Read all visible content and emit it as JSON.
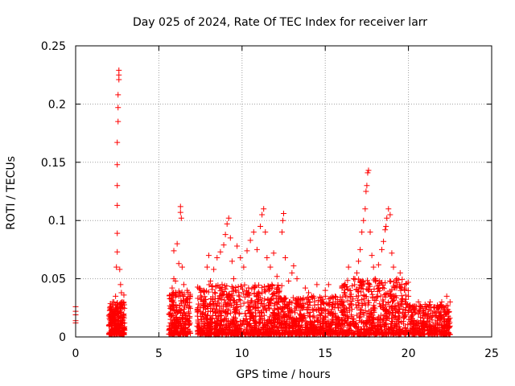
{
  "chart_data": {
    "type": "scatter",
    "title": "Day 025 of 2024, Rate Of TEC Index for receiver larr",
    "xlabel": "GPS time / hours",
    "ylabel": "ROTI / TECUs",
    "xlim": [
      0,
      25
    ],
    "ylim": [
      0,
      0.25
    ],
    "xticks": [
      0,
      5,
      10,
      15,
      20,
      25
    ],
    "xtick_labels": [
      "0",
      "5",
      "10",
      "15",
      "20",
      "25"
    ],
    "yticks": [
      0,
      0.05,
      0.1,
      0.15,
      0.2,
      0.25
    ],
    "ytick_labels": [
      "0",
      "0.05",
      "0.1",
      "0.15",
      "0.2",
      "0.25"
    ],
    "grid": true,
    "marker": "+",
    "color": "#ff0000",
    "series": [
      {
        "name": "ROTI",
        "points": [
          [
            0.0,
            0.012
          ],
          [
            0.0,
            0.014
          ],
          [
            0.0,
            0.019
          ],
          [
            0.0,
            0.022
          ],
          [
            0.0,
            0.026
          ],
          [
            2.0,
            0.01
          ],
          [
            2.0,
            0.018
          ],
          [
            2.1,
            0.025
          ],
          [
            2.1,
            0.013
          ],
          [
            2.2,
            0.022
          ],
          [
            2.2,
            0.009
          ],
          [
            2.3,
            0.03
          ],
          [
            2.3,
            0.016
          ],
          [
            2.4,
            0.035
          ],
          [
            2.4,
            0.012
          ],
          [
            2.45,
            0.06
          ],
          [
            2.5,
            0.073
          ],
          [
            2.5,
            0.089
          ],
          [
            2.5,
            0.113
          ],
          [
            2.5,
            0.13
          ],
          [
            2.5,
            0.148
          ],
          [
            2.5,
            0.167
          ],
          [
            2.55,
            0.185
          ],
          [
            2.55,
            0.197
          ],
          [
            2.55,
            0.208
          ],
          [
            2.6,
            0.221
          ],
          [
            2.6,
            0.225
          ],
          [
            2.6,
            0.229
          ],
          [
            2.65,
            0.058
          ],
          [
            2.7,
            0.045
          ],
          [
            2.7,
            0.02
          ],
          [
            2.75,
            0.038
          ],
          [
            2.8,
            0.03
          ],
          [
            2.8,
            0.012
          ],
          [
            2.9,
            0.036
          ],
          [
            2.9,
            0.018
          ],
          [
            2.9,
            0.008
          ],
          [
            5.7,
            0.012
          ],
          [
            5.8,
            0.03
          ],
          [
            5.8,
            0.042
          ],
          [
            5.9,
            0.05
          ],
          [
            5.9,
            0.074
          ],
          [
            6.0,
            0.02
          ],
          [
            6.0,
            0.048
          ],
          [
            6.1,
            0.08
          ],
          [
            6.2,
            0.063
          ],
          [
            6.2,
            0.035
          ],
          [
            6.3,
            0.107
          ],
          [
            6.3,
            0.112
          ],
          [
            6.35,
            0.102
          ],
          [
            6.4,
            0.06
          ],
          [
            6.4,
            0.015
          ],
          [
            6.5,
            0.045
          ],
          [
            6.6,
            0.03
          ],
          [
            6.7,
            0.04
          ],
          [
            6.8,
            0.025
          ],
          [
            6.8,
            0.01
          ],
          [
            7.5,
            0.022
          ],
          [
            7.7,
            0.04
          ],
          [
            7.9,
            0.06
          ],
          [
            8.0,
            0.07
          ],
          [
            8.1,
            0.048
          ],
          [
            8.3,
            0.058
          ],
          [
            8.5,
            0.068
          ],
          [
            8.7,
            0.073
          ],
          [
            8.8,
            0.045
          ],
          [
            8.9,
            0.079
          ],
          [
            9.0,
            0.088
          ],
          [
            9.1,
            0.097
          ],
          [
            9.2,
            0.102
          ],
          [
            9.3,
            0.085
          ],
          [
            9.4,
            0.065
          ],
          [
            9.5,
            0.05
          ],
          [
            9.7,
            0.078
          ],
          [
            9.9,
            0.068
          ],
          [
            10.1,
            0.06
          ],
          [
            10.3,
            0.074
          ],
          [
            10.5,
            0.083
          ],
          [
            10.7,
            0.09
          ],
          [
            10.9,
            0.075
          ],
          [
            11.1,
            0.095
          ],
          [
            11.2,
            0.105
          ],
          [
            11.3,
            0.11
          ],
          [
            11.4,
            0.09
          ],
          [
            11.5,
            0.068
          ],
          [
            11.7,
            0.06
          ],
          [
            11.9,
            0.072
          ],
          [
            12.1,
            0.052
          ],
          [
            12.2,
            0.042
          ],
          [
            12.4,
            0.09
          ],
          [
            12.45,
            0.1
          ],
          [
            12.5,
            0.106
          ],
          [
            12.6,
            0.068
          ],
          [
            12.8,
            0.048
          ],
          [
            13.0,
            0.055
          ],
          [
            13.1,
            0.061
          ],
          [
            13.3,
            0.05
          ],
          [
            13.5,
            0.032
          ],
          [
            13.8,
            0.042
          ],
          [
            14.0,
            0.038
          ],
          [
            14.3,
            0.035
          ],
          [
            14.5,
            0.045
          ],
          [
            14.8,
            0.03
          ],
          [
            15.0,
            0.04
          ],
          [
            15.2,
            0.045
          ],
          [
            15.4,
            0.028
          ],
          [
            15.6,
            0.035
          ],
          [
            15.8,
            0.025
          ],
          [
            16.0,
            0.03
          ],
          [
            16.2,
            0.045
          ],
          [
            16.4,
            0.06
          ],
          [
            16.5,
            0.04
          ],
          [
            16.7,
            0.05
          ],
          [
            16.9,
            0.055
          ],
          [
            17.0,
            0.065
          ],
          [
            17.1,
            0.075
          ],
          [
            17.2,
            0.09
          ],
          [
            17.3,
            0.1
          ],
          [
            17.4,
            0.11
          ],
          [
            17.45,
            0.125
          ],
          [
            17.5,
            0.13
          ],
          [
            17.55,
            0.141
          ],
          [
            17.6,
            0.143
          ],
          [
            17.7,
            0.09
          ],
          [
            17.8,
            0.07
          ],
          [
            17.9,
            0.06
          ],
          [
            18.0,
            0.05
          ],
          [
            18.2,
            0.062
          ],
          [
            18.4,
            0.075
          ],
          [
            18.5,
            0.082
          ],
          [
            18.6,
            0.092
          ],
          [
            18.65,
            0.095
          ],
          [
            18.7,
            0.102
          ],
          [
            18.8,
            0.11
          ],
          [
            18.9,
            0.105
          ],
          [
            19.0,
            0.072
          ],
          [
            19.1,
            0.06
          ],
          [
            19.3,
            0.05
          ],
          [
            19.5,
            0.055
          ],
          [
            19.6,
            0.045
          ],
          [
            19.8,
            0.03
          ],
          [
            20.0,
            0.035
          ],
          [
            20.3,
            0.025
          ],
          [
            20.6,
            0.03
          ],
          [
            21.0,
            0.028
          ],
          [
            21.3,
            0.03
          ],
          [
            21.7,
            0.025
          ],
          [
            22.0,
            0.03
          ],
          [
            22.3,
            0.035
          ],
          [
            22.5,
            0.03
          ]
        ]
      }
    ],
    "dense_band": {
      "description": "background noise points (data units)",
      "segments": [
        {
          "x": [
            2.0,
            2.95
          ],
          "y": [
            0.002,
            0.03
          ],
          "count": 240
        },
        {
          "x": [
            5.6,
            6.9
          ],
          "y": [
            0.002,
            0.04
          ],
          "count": 260
        },
        {
          "x": [
            7.3,
            9.4
          ],
          "y": [
            0.002,
            0.045
          ],
          "count": 380
        },
        {
          "x": [
            9.4,
            12.5
          ],
          "y": [
            0.002,
            0.045
          ],
          "count": 520
        },
        {
          "x": [
            12.5,
            16.0
          ],
          "y": [
            0.002,
            0.035
          ],
          "count": 520
        },
        {
          "x": [
            16.0,
            20.0
          ],
          "y": [
            0.002,
            0.05
          ],
          "count": 620
        },
        {
          "x": [
            20.0,
            22.5
          ],
          "y": [
            0.002,
            0.028
          ],
          "count": 360
        }
      ]
    }
  }
}
